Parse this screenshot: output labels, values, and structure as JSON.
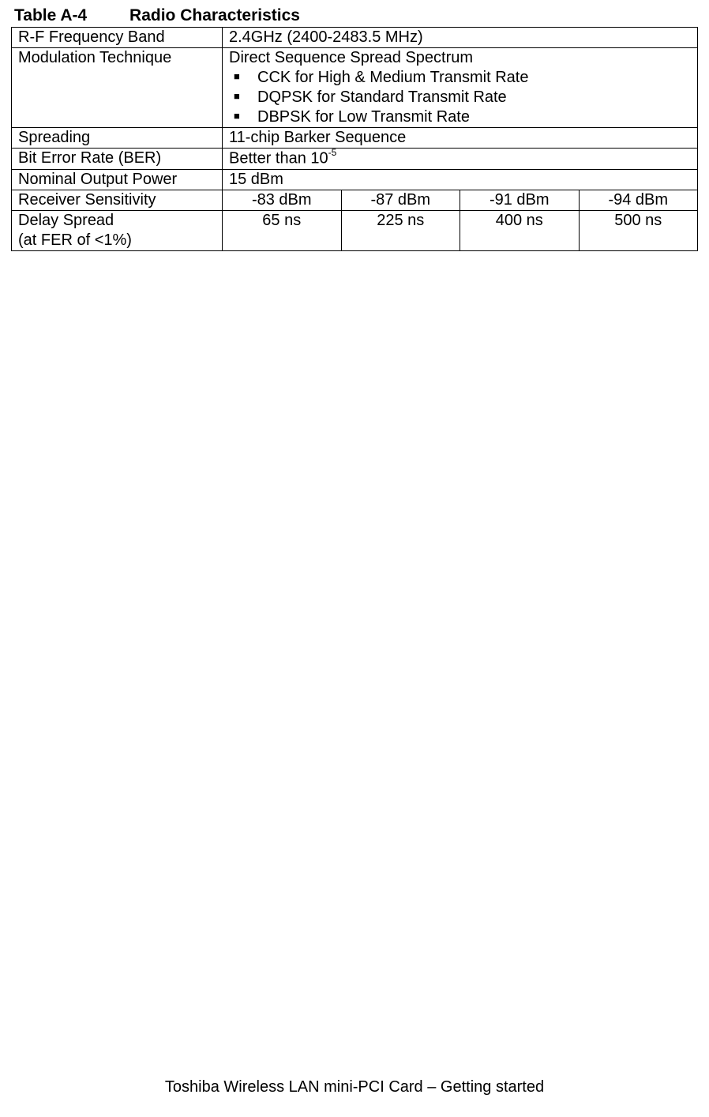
{
  "title": {
    "label": "Table A-4",
    "heading": "Radio Characteristics"
  },
  "table": {
    "rows": {
      "freq_band": {
        "label": "R-F Frequency Band",
        "value": "2.4GHz (2400-2483.5 MHz)"
      },
      "modulation": {
        "label": "Modulation Technique",
        "intro": "Direct Sequence Spread Spectrum",
        "items": [
          "CCK for High & Medium Transmit Rate",
          "DQPSK for Standard Transmit Rate",
          "DBPSK for Low Transmit Rate"
        ]
      },
      "spreading": {
        "label": "Spreading",
        "value": "11-chip Barker Sequence"
      },
      "ber": {
        "label": "Bit Error Rate (BER)",
        "value_prefix": "Better than 10",
        "value_super": "-5"
      },
      "output_power": {
        "label": "Nominal Output Power",
        "value": "15 dBm"
      },
      "receiver_sensitivity": {
        "label": "Receiver Sensitivity",
        "values": [
          "-83 dBm",
          "-87 dBm",
          "-91 dBm",
          "-94 dBm"
        ]
      },
      "delay_spread": {
        "label_line1": "Delay Spread",
        "label_line2": "(at FER of <1%)",
        "values": [
          "65 ns",
          "225 ns",
          "400 ns",
          "500 ns"
        ]
      }
    }
  },
  "footer": "Toshiba Wireless LAN mini-PCI Card – Getting started",
  "styling": {
    "background_color": "#ffffff",
    "text_color": "#000000",
    "border_color": "#000000",
    "title_fontsize": 21,
    "table_fontsize": 20,
    "footer_fontsize": 20,
    "font_family": "Arial",
    "label_col_width": 267,
    "multi_col_width": 150
  }
}
